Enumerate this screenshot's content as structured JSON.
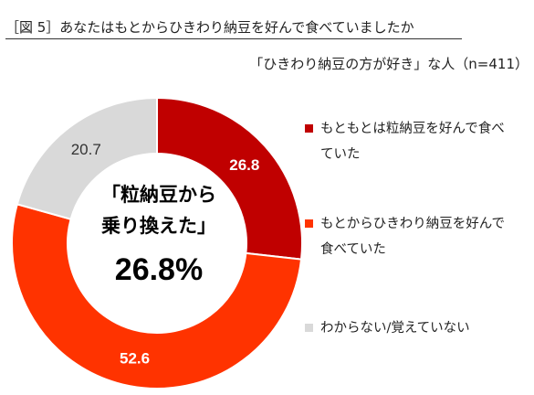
{
  "header": {
    "title": "［図 5］あなたはもとからひきわり納豆を好んで食べていましたか",
    "subtitle": "「ひきわり納豆の方が好き」な人（n=411）"
  },
  "center": {
    "line1": "「粒納豆から",
    "line2": "乗り換えた」",
    "value": "26.8%"
  },
  "colors": {
    "slice1": "#C00000",
    "slice2": "#FF3300",
    "slice3": "#D9D9D9",
    "label_on_dark": "#ffffff",
    "label_on_light": "#333333"
  },
  "chart_data": {
    "type": "pie",
    "donut": true,
    "title": "［図 5］あなたはもとからひきわり納豆を好んで食べていましたか",
    "subtitle": "「ひきわり納豆の方が好き」な人（n=411）",
    "start": "top",
    "direction": "clockwise",
    "legend_position": "right",
    "categories": [
      "もともとは粒納豆を好んで食べていた",
      "もとからひきわり納豆を好んで食べていた",
      "わからない/覚えていない"
    ],
    "values": [
      26.8,
      52.6,
      20.7
    ],
    "labels": [
      "26.8",
      "52.6",
      "20.7"
    ]
  }
}
